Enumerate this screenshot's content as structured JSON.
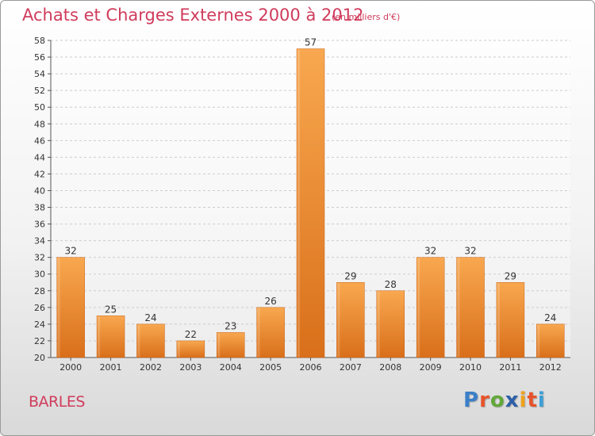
{
  "title": "Achats et Charges Externes 2000 à 2012",
  "subtitle": "(en milliers d'€)",
  "place": "BARLES",
  "logo": {
    "letters": [
      "P",
      "r",
      "o",
      "x",
      "i",
      "t",
      "i"
    ],
    "colors": [
      "#3a7fc8",
      "#e8532b",
      "#62a83a",
      "#2d5fa8",
      "#f0a21c",
      "#e8532b",
      "#3a9fd8"
    ]
  },
  "colors": {
    "bar_light": "#f8a850",
    "bar_dark": "#d96f1a",
    "title": "#d03c5c",
    "grid": "#cccccc",
    "text": "#333333"
  },
  "chart_data": {
    "type": "bar",
    "title": "Achats et Charges Externes 2000 à 2012",
    "subtitle": "(en milliers d'€)",
    "categories": [
      "2000",
      "2001",
      "2002",
      "2003",
      "2004",
      "2005",
      "2006",
      "2007",
      "2008",
      "2009",
      "2010",
      "2011",
      "2012"
    ],
    "values": [
      32,
      25,
      24,
      22,
      23,
      26,
      57,
      29,
      28,
      32,
      32,
      29,
      24
    ],
    "ylim": [
      20,
      58
    ],
    "ytick_step": 2,
    "grid": "horizontal dashed",
    "legend": "none",
    "data_labels": true
  }
}
